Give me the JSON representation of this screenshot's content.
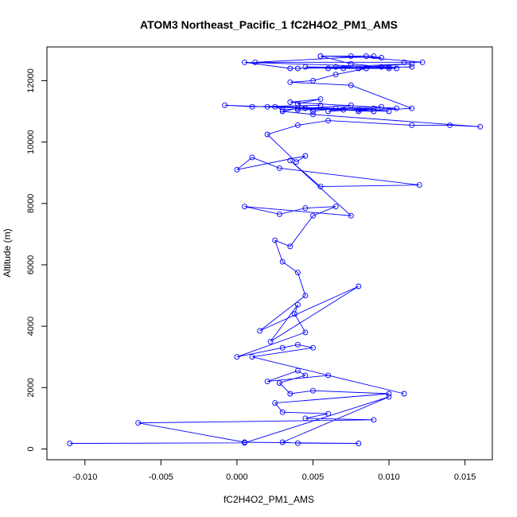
{
  "chart_data": {
    "type": "line",
    "title": "ATOM3 Northeast_Pacific_1 fC2H4O2_PM1_AMS",
    "xlabel": "fC2H4O2_PM1_AMS",
    "ylabel": "Altitude (m)",
    "xlim": [
      -0.0125,
      0.0168
    ],
    "ylim": [
      -350,
      13100
    ],
    "xticks": [
      -0.01,
      -0.005,
      0.0,
      0.005,
      0.01,
      0.015
    ],
    "xtick_labels": [
      "-0.010",
      "-0.005",
      "0.000",
      "0.005",
      "0.010",
      "0.015"
    ],
    "yticks": [
      0,
      2000,
      4000,
      6000,
      8000,
      10000,
      12000
    ],
    "ytick_labels": [
      "0",
      "2000",
      "4000",
      "6000",
      "8000",
      "10000",
      "12000"
    ],
    "grid": false,
    "legend": "none",
    "series_color": "#0000ff",
    "marker": "open-circle",
    "series": [
      {
        "x": [
          -0.011,
          0.0005,
          0.01,
          0.003,
          0.004,
          0.008,
          0.0005,
          -0.0065,
          0.009,
          0.0045,
          0.006,
          0.003,
          0.0025,
          0.01,
          0.005,
          0.0035,
          0.0028,
          0.0045,
          0.004,
          0.002,
          0.006,
          0.011,
          0.001,
          0.005,
          0.004,
          0.003,
          0.0,
          0.0045,
          0.0038,
          0.004,
          0.0022,
          0.008,
          0.0015,
          0.0045,
          0.004,
          0.003,
          0.0025,
          0.0035,
          0.005,
          0.0065,
          0.0045,
          0.0028,
          0.0005,
          0.0075,
          0.0035,
          0.0055,
          0.012,
          0.0028,
          0.001,
          0.0,
          0.0045,
          0.0039,
          0.002,
          0.004,
          0.006,
          0.0115,
          0.014,
          0.016,
          0.005,
          0.003,
          0.004,
          0.007,
          0.01,
          0.002,
          0.0055,
          0.001,
          -0.0008,
          0.0045,
          0.009,
          0.008,
          0.0105,
          0.0035,
          0.0055,
          0.004,
          0.005,
          0.0065,
          0.0025,
          0.003,
          0.0075,
          0.006,
          0.009,
          0.004,
          0.0095,
          0.008,
          0.0115,
          0.0075,
          0.0035,
          0.005,
          0.0065,
          0.0085,
          0.0105,
          0.0045,
          0.006,
          0.008,
          0.0115,
          0.0035,
          0.0005,
          0.01,
          0.007,
          0.0115,
          0.004,
          0.0065,
          0.01,
          0.0095,
          0.0075,
          0.0055,
          0.009,
          0.0012,
          0.011,
          0.0122,
          0.0075,
          0.0085,
          0.0095,
          0.0055
        ],
        "y": [
          180,
          200,
          1700,
          220,
          190,
          180,
          220,
          850,
          950,
          1000,
          1150,
          1200,
          1500,
          1800,
          1900,
          1800,
          2150,
          2400,
          2550,
          2200,
          2400,
          1800,
          3000,
          3300,
          3400,
          3300,
          3000,
          3800,
          4400,
          4700,
          3500,
          5300,
          3850,
          5000,
          5750,
          6100,
          6800,
          6600,
          7600,
          7900,
          7850,
          7650,
          7900,
          7600,
          9400,
          8550,
          8600,
          9150,
          9500,
          9100,
          9550,
          9350,
          10250,
          10550,
          10700,
          10550,
          10550,
          10500,
          10900,
          11000,
          11100,
          11050,
          11000,
          11150,
          11200,
          11150,
          11200,
          11100,
          11000,
          11050,
          11100,
          11300,
          11400,
          11250,
          11000,
          11100,
          11150,
          11050,
          11200,
          11000,
          11100,
          11050,
          11150,
          11000,
          11100,
          11850,
          11950,
          12000,
          12200,
          12400,
          12400,
          12450,
          12400,
          12400,
          12450,
          12400,
          12600,
          12450,
          12400,
          12550,
          12400,
          12450,
          12400,
          12450,
          12550,
          12800,
          12800,
          12600,
          12600,
          12600,
          12800,
          12800,
          12750,
          12800
        ]
      }
    ]
  }
}
